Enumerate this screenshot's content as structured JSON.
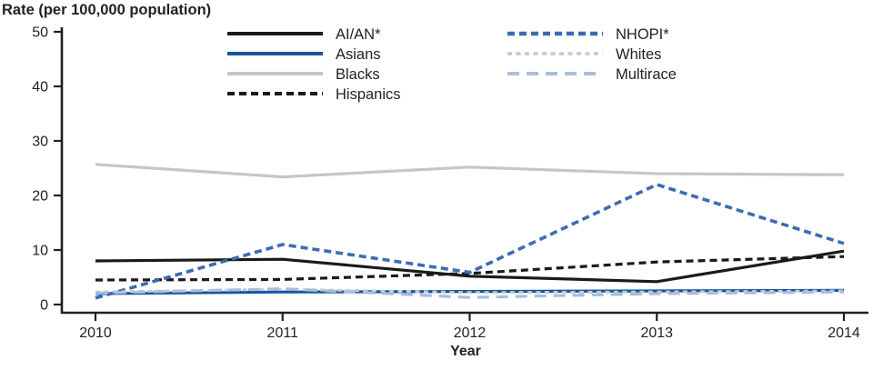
{
  "chart_data": {
    "type": "line",
    "title": "Rate (per 100,000 population)",
    "xlabel": "Year",
    "ylabel": "Rate (per 100,000 population)",
    "x": [
      2010,
      2011,
      2012,
      2013,
      2014
    ],
    "ylim": [
      0,
      50
    ],
    "yticks": [
      0,
      10,
      20,
      30,
      40,
      50
    ],
    "grid": false,
    "axis_color": "#231f20",
    "legend": {
      "position": "top-center, two columns, no border",
      "columns": [
        [
          0,
          1,
          2,
          3
        ],
        [
          4,
          5,
          6
        ]
      ]
    },
    "series": [
      {
        "name": "AI/AN*",
        "values": [
          8.0,
          8.3,
          5.2,
          4.2,
          9.8
        ],
        "color": "#1a1a1a",
        "style": "solid",
        "width": 3.2
      },
      {
        "name": "Asians",
        "values": [
          2.0,
          2.3,
          2.4,
          2.5,
          2.6
        ],
        "color": "#15569e",
        "style": "solid",
        "width": 3.2
      },
      {
        "name": "Blacks",
        "values": [
          25.7,
          23.4,
          25.2,
          24.0,
          23.8
        ],
        "color": "#c6c6c8",
        "style": "solid",
        "width": 3.2
      },
      {
        "name": "Hispanics",
        "values": [
          4.5,
          4.6,
          5.7,
          7.8,
          8.8
        ],
        "color": "#1a1a1a",
        "style": "dashed",
        "width": 3.2
      },
      {
        "name": "NHOPI*",
        "values": [
          1.2,
          11.0,
          5.9,
          22.0,
          11.2
        ],
        "color": "#3a6cb4",
        "style": "dashed",
        "width": 3.6
      },
      {
        "name": "Whites",
        "values": [
          2.3,
          2.8,
          2.2,
          2.3,
          2.5
        ],
        "color": "#c7cbd1",
        "style": "dashed-small",
        "width": 3.0
      },
      {
        "name": "Multirace",
        "values": [
          2.1,
          2.9,
          1.3,
          2.0,
          2.3
        ],
        "color": "#a9bddd",
        "style": "dashed-long",
        "width": 3.2
      }
    ]
  }
}
